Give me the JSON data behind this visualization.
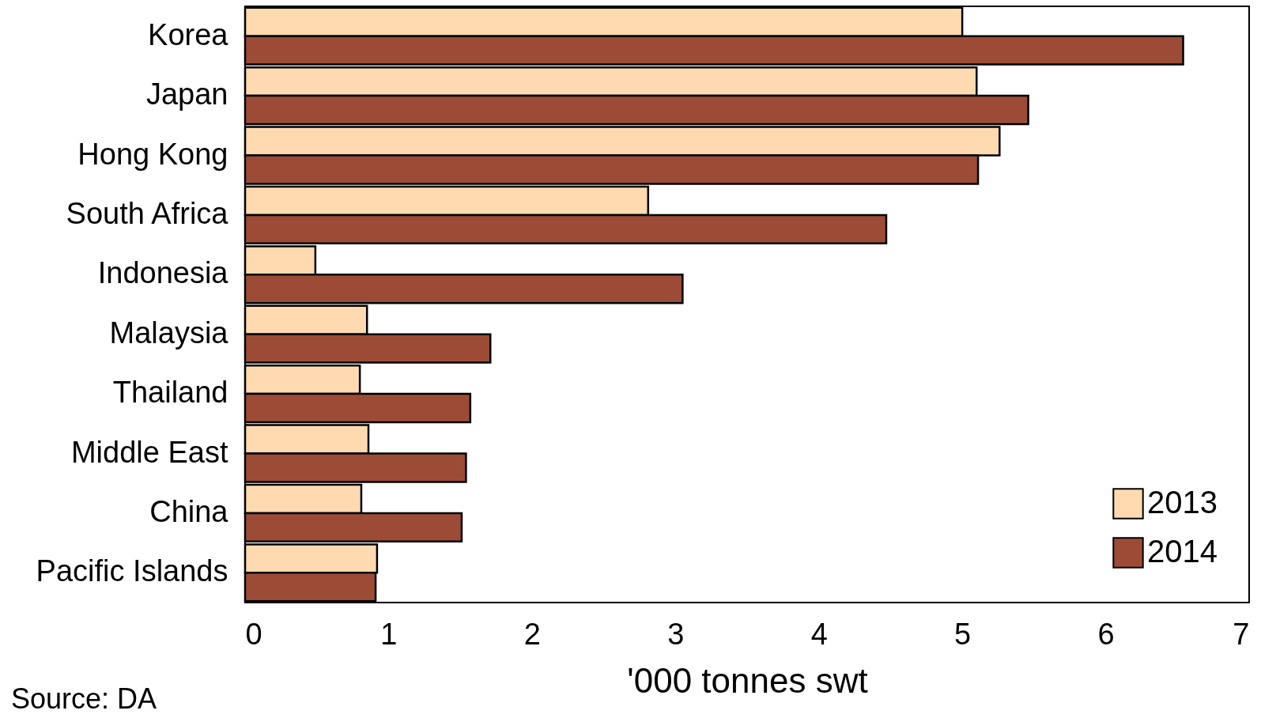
{
  "chart_data": {
    "type": "bar",
    "orientation": "horizontal",
    "categories": [
      "Korea",
      "Japan",
      "Hong Kong",
      "South Africa",
      "Indonesia",
      "Malaysia",
      "Thailand",
      "Middle East",
      "China",
      "Pacific Islands"
    ],
    "series": [
      {
        "name": "2013",
        "color": "#ffdab0",
        "values": [
          5.0,
          5.1,
          5.26,
          2.81,
          0.49,
          0.85,
          0.8,
          0.86,
          0.81,
          0.92
        ]
      },
      {
        "name": "2014",
        "color": "#9c4c36",
        "values": [
          6.54,
          5.46,
          5.11,
          4.47,
          3.05,
          1.71,
          1.57,
          1.54,
          1.51,
          0.91
        ]
      }
    ],
    "xlim": [
      0,
      7
    ],
    "xticks": [
      0,
      1,
      2,
      3,
      4,
      5,
      6,
      7
    ],
    "xlabel": "'000 tonnes swt",
    "grid": false,
    "legend": "bottom right",
    "annotations": [
      "Source: DA"
    ]
  }
}
